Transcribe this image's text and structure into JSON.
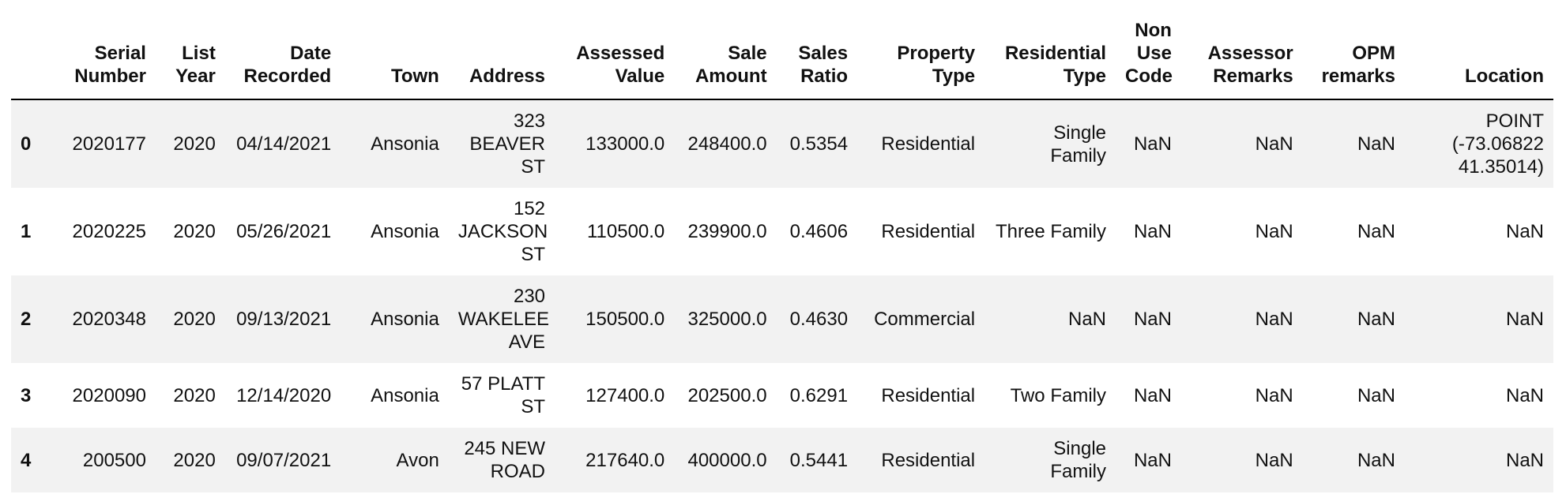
{
  "columns": [
    {
      "key": "index",
      "label": ""
    },
    {
      "key": "serial_number",
      "label": "Serial Number"
    },
    {
      "key": "list_year",
      "label": "List Year"
    },
    {
      "key": "date_recorded",
      "label": "Date Recorded"
    },
    {
      "key": "town",
      "label": "Town"
    },
    {
      "key": "address",
      "label": "Address"
    },
    {
      "key": "assessed_value",
      "label": "Assessed Value"
    },
    {
      "key": "sale_amount",
      "label": "Sale Amount"
    },
    {
      "key": "sales_ratio",
      "label": "Sales Ratio"
    },
    {
      "key": "property_type",
      "label": "Property Type"
    },
    {
      "key": "residential_type",
      "label": "Residential Type"
    },
    {
      "key": "non_use_code",
      "label": "Non Use Code"
    },
    {
      "key": "assessor_remarks",
      "label": "Assessor Remarks"
    },
    {
      "key": "opm_remarks",
      "label": "OPM remarks"
    },
    {
      "key": "location",
      "label": "Location"
    }
  ],
  "rows": [
    {
      "index": "0",
      "serial_number": "2020177",
      "list_year": "2020",
      "date_recorded": "04/14/2021",
      "town": "Ansonia",
      "address": "323 BEAVER ST",
      "assessed_value": "133000.0",
      "sale_amount": "248400.0",
      "sales_ratio": "0.5354",
      "property_type": "Residential",
      "residential_type": "Single Family",
      "non_use_code": "NaN",
      "assessor_remarks": "NaN",
      "opm_remarks": "NaN",
      "location": "POINT (-73.06822 41.35014)"
    },
    {
      "index": "1",
      "serial_number": "2020225",
      "list_year": "2020",
      "date_recorded": "05/26/2021",
      "town": "Ansonia",
      "address": "152 JACKSON ST",
      "assessed_value": "110500.0",
      "sale_amount": "239900.0",
      "sales_ratio": "0.4606",
      "property_type": "Residential",
      "residential_type": "Three Family",
      "non_use_code": "NaN",
      "assessor_remarks": "NaN",
      "opm_remarks": "NaN",
      "location": "NaN"
    },
    {
      "index": "2",
      "serial_number": "2020348",
      "list_year": "2020",
      "date_recorded": "09/13/2021",
      "town": "Ansonia",
      "address": "230 WAKELEE AVE",
      "assessed_value": "150500.0",
      "sale_amount": "325000.0",
      "sales_ratio": "0.4630",
      "property_type": "Commercial",
      "residential_type": "NaN",
      "non_use_code": "NaN",
      "assessor_remarks": "NaN",
      "opm_remarks": "NaN",
      "location": "NaN"
    },
    {
      "index": "3",
      "serial_number": "2020090",
      "list_year": "2020",
      "date_recorded": "12/14/2020",
      "town": "Ansonia",
      "address": "57 PLATT ST",
      "assessed_value": "127400.0",
      "sale_amount": "202500.0",
      "sales_ratio": "0.6291",
      "property_type": "Residential",
      "residential_type": "Two Family",
      "non_use_code": "NaN",
      "assessor_remarks": "NaN",
      "opm_remarks": "NaN",
      "location": "NaN"
    },
    {
      "index": "4",
      "serial_number": "200500",
      "list_year": "2020",
      "date_recorded": "09/07/2021",
      "town": "Avon",
      "address": "245 NEW ROAD",
      "assessed_value": "217640.0",
      "sale_amount": "400000.0",
      "sales_ratio": "0.5441",
      "property_type": "Residential",
      "residential_type": "Single Family",
      "non_use_code": "NaN",
      "assessor_remarks": "NaN",
      "opm_remarks": "NaN",
      "location": "NaN"
    }
  ]
}
